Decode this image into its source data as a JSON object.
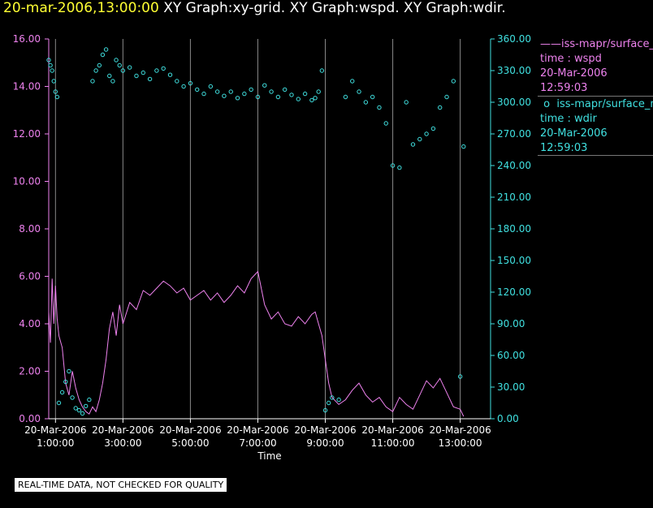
{
  "title": {
    "timestamp": "20-mar-2006,13:00:00",
    "graphs": "XY Graph:xy-grid.  XY Graph:wspd.  XY Graph:wdir."
  },
  "legend": {
    "series1": {
      "name": "iss-mapr/surface_m",
      "line1": "time : wspd",
      "line2": "20-Mar-2006",
      "line3": "12:59:03"
    },
    "series2": {
      "name": "iss-mapr/surface_m",
      "line1": "time : wdir",
      "line2": "20-Mar-2006",
      "line3": "12:59:03"
    }
  },
  "quality_notice": "REAL-TIME DATA, NOT CHECKED FOR QUALITY",
  "colors": {
    "wspd": "#ee82ee",
    "wdir": "#40e0e0",
    "timestamp": "#ffff33"
  },
  "chart_data": {
    "type": "scatter",
    "xlabel": "Time",
    "xlim": [
      0.8,
      13.9
    ],
    "x_ticks": [
      {
        "x": 1,
        "date": "20-Mar-2006",
        "time": "1:00:00"
      },
      {
        "x": 3,
        "date": "20-Mar-2006",
        "time": "3:00:00"
      },
      {
        "x": 5,
        "date": "20-Mar-2006",
        "time": "5:00:00"
      },
      {
        "x": 7,
        "date": "20-Mar-2006",
        "time": "7:00:00"
      },
      {
        "x": 9,
        "date": "20-Mar-2006",
        "time": "9:00:00"
      },
      {
        "x": 11,
        "date": "20-Mar-2006",
        "time": "11:00:00"
      },
      {
        "x": 13,
        "date": "20-Mar-2006",
        "time": "13:00:00"
      }
    ],
    "y_left": {
      "lim": [
        0,
        16
      ],
      "ticks": [
        "0.00",
        "2.00",
        "4.00",
        "6.00",
        "8.00",
        "10.00",
        "12.00",
        "14.00",
        "16.00"
      ]
    },
    "y_right": {
      "lim": [
        0,
        360
      ],
      "ticks": [
        "0.00",
        "30.00",
        "60.00",
        "90.00",
        "120.00",
        "150.00",
        "180.00",
        "210.00",
        "240.00",
        "270.00",
        "300.00",
        "330.00",
        "360.00"
      ]
    },
    "grid": "vertical",
    "series": [
      {
        "name": "wspd",
        "style": "line",
        "axis": "left",
        "x": [
          0.8,
          0.85,
          0.9,
          0.95,
          1.0,
          1.05,
          1.1,
          1.2,
          1.3,
          1.4,
          1.5,
          1.6,
          1.7,
          1.8,
          1.9,
          2.0,
          2.1,
          2.2,
          2.3,
          2.4,
          2.5,
          2.6,
          2.7,
          2.8,
          2.9,
          3.0,
          3.2,
          3.4,
          3.6,
          3.8,
          4.0,
          4.2,
          4.4,
          4.6,
          4.8,
          5.0,
          5.2,
          5.4,
          5.6,
          5.8,
          6.0,
          6.2,
          6.4,
          6.6,
          6.8,
          7.0,
          7.2,
          7.4,
          7.6,
          7.8,
          8.0,
          8.2,
          8.4,
          8.6,
          8.7,
          8.8,
          8.9,
          9.0,
          9.1,
          9.2,
          9.4,
          9.6,
          9.8,
          10.0,
          10.2,
          10.4,
          10.6,
          10.8,
          11.0,
          11.2,
          11.4,
          11.6,
          11.8,
          12.0,
          12.2,
          12.4,
          12.6,
          12.8,
          13.0,
          13.1
        ],
        "y": [
          4.5,
          3.2,
          5.9,
          4.0,
          5.6,
          4.2,
          3.5,
          3.0,
          1.5,
          1.0,
          2.0,
          1.3,
          0.8,
          0.5,
          0.3,
          0.2,
          0.5,
          0.3,
          0.8,
          1.5,
          2.5,
          3.8,
          4.5,
          3.5,
          4.8,
          4.0,
          4.9,
          4.6,
          5.4,
          5.2,
          5.5,
          5.8,
          5.6,
          5.3,
          5.5,
          5.0,
          5.2,
          5.4,
          5.0,
          5.3,
          4.9,
          5.2,
          5.6,
          5.3,
          5.9,
          6.2,
          4.8,
          4.2,
          4.5,
          4.0,
          3.9,
          4.3,
          4.0,
          4.4,
          4.5,
          4.0,
          3.5,
          2.5,
          1.5,
          0.9,
          0.6,
          0.8,
          1.2,
          1.5,
          1.0,
          0.7,
          0.9,
          0.5,
          0.3,
          0.9,
          0.6,
          0.4,
          1.0,
          1.6,
          1.3,
          1.7,
          1.1,
          0.5,
          0.4,
          0.1
        ]
      },
      {
        "name": "wdir",
        "style": "scatter",
        "axis": "right",
        "x": [
          0.8,
          0.85,
          0.9,
          0.95,
          1.0,
          1.05,
          1.1,
          1.2,
          1.3,
          1.4,
          1.5,
          1.6,
          1.7,
          1.8,
          1.9,
          2.0,
          2.1,
          2.2,
          2.3,
          2.4,
          2.5,
          2.6,
          2.7,
          2.8,
          2.9,
          3.0,
          3.2,
          3.4,
          3.6,
          3.8,
          4.0,
          4.2,
          4.4,
          4.6,
          4.8,
          5.0,
          5.2,
          5.4,
          5.6,
          5.8,
          6.0,
          6.2,
          6.4,
          6.6,
          6.8,
          7.0,
          7.2,
          7.4,
          7.6,
          7.8,
          8.0,
          8.2,
          8.4,
          8.6,
          8.7,
          8.8,
          8.9,
          9.0,
          9.1,
          9.2,
          9.4,
          9.6,
          9.8,
          10.0,
          10.2,
          10.4,
          10.6,
          10.8,
          11.0,
          11.2,
          11.4,
          11.6,
          11.8,
          12.0,
          12.2,
          12.4,
          12.6,
          12.8,
          13.0,
          13.1
        ],
        "y": [
          340,
          335,
          330,
          320,
          310,
          305,
          15,
          25,
          35,
          45,
          20,
          10,
          8,
          5,
          12,
          18,
          320,
          330,
          335,
          345,
          350,
          325,
          320,
          340,
          335,
          330,
          333,
          325,
          328,
          322,
          330,
          332,
          326,
          320,
          315,
          318,
          312,
          308,
          315,
          310,
          306,
          310,
          304,
          308,
          312,
          305,
          316,
          310,
          305,
          312,
          307,
          303,
          308,
          302,
          304,
          310,
          330,
          8,
          15,
          20,
          18,
          305,
          320,
          310,
          300,
          305,
          295,
          280,
          240,
          238,
          300,
          260,
          265,
          270,
          275,
          295,
          305,
          320,
          40,
          258
        ]
      }
    ]
  }
}
